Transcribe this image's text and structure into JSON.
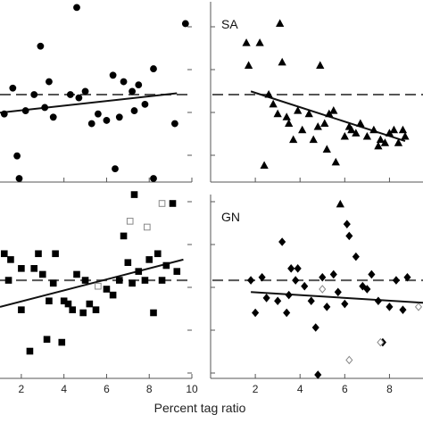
{
  "chart_data": [
    {
      "type": "scatter",
      "label": "",
      "marker": "circle",
      "xlim": [
        1,
        10
      ],
      "ylim": [
        -1.3,
        1.3
      ],
      "x_ticks": [
        2,
        4,
        6,
        8,
        10
      ],
      "show_x_tick_labels": false,
      "points_filled": [
        [
          1.2,
          -0.3
        ],
        [
          1.6,
          0.1
        ],
        [
          1.8,
          -0.95
        ],
        [
          1.9,
          -1.3
        ],
        [
          2.2,
          -0.25
        ],
        [
          2.6,
          0.0
        ],
        [
          2.9,
          0.75
        ],
        [
          3.1,
          -0.2
        ],
        [
          3.3,
          0.2
        ],
        [
          3.5,
          -0.35
        ],
        [
          4.3,
          0.0
        ],
        [
          4.6,
          1.35
        ],
        [
          4.7,
          -0.05
        ],
        [
          5.0,
          0.05
        ],
        [
          5.3,
          -0.45
        ],
        [
          5.6,
          -0.3
        ],
        [
          6.0,
          -0.4
        ],
        [
          6.3,
          0.3
        ],
        [
          6.4,
          -1.15
        ],
        [
          6.6,
          -0.35
        ],
        [
          6.8,
          0.2
        ],
        [
          7.2,
          0.05
        ],
        [
          7.3,
          -0.25
        ],
        [
          7.5,
          0.15
        ],
        [
          7.8,
          -0.15
        ],
        [
          8.2,
          -1.3
        ],
        [
          8.2,
          0.4
        ],
        [
          9.2,
          -0.45
        ],
        [
          9.7,
          1.1
        ]
      ],
      "points_open": [],
      "fit_line": {
        "x": [
          1,
          9.3
        ],
        "y": [
          -0.28,
          0.02
        ]
      }
    },
    {
      "type": "scatter",
      "label": "SA",
      "marker": "triangle",
      "xlim": [
        0,
        9.5
      ],
      "ylim": [
        -1.3,
        1.3
      ],
      "x_ticks": [
        2,
        4,
        6,
        8
      ],
      "show_x_tick_labels": false,
      "points_filled": [
        [
          1.6,
          0.8
        ],
        [
          1.7,
          0.45
        ],
        [
          2.2,
          0.8
        ],
        [
          2.4,
          -1.1
        ],
        [
          2.6,
          0.0
        ],
        [
          2.8,
          -0.15
        ],
        [
          3.0,
          -0.3
        ],
        [
          3.1,
          1.1
        ],
        [
          3.2,
          0.5
        ],
        [
          3.4,
          -0.35
        ],
        [
          3.5,
          -0.45
        ],
        [
          3.7,
          -0.7
        ],
        [
          3.9,
          -0.25
        ],
        [
          4.1,
          -0.55
        ],
        [
          4.4,
          -0.3
        ],
        [
          4.6,
          -0.7
        ],
        [
          4.8,
          -0.5
        ],
        [
          4.9,
          0.45
        ],
        [
          5.1,
          -0.45
        ],
        [
          5.2,
          -0.85
        ],
        [
          5.3,
          -0.3
        ],
        [
          5.5,
          -0.25
        ],
        [
          5.6,
          -1.05
        ],
        [
          5.8,
          -1.7
        ],
        [
          6.0,
          -0.65
        ],
        [
          6.2,
          -0.5
        ],
        [
          6.3,
          -0.55
        ],
        [
          6.5,
          -0.6
        ],
        [
          6.7,
          -0.45
        ],
        [
          7.0,
          -0.65
        ],
        [
          7.3,
          -0.55
        ],
        [
          7.5,
          -0.8
        ],
        [
          7.6,
          -0.7
        ],
        [
          7.8,
          -0.75
        ],
        [
          8.0,
          -0.6
        ],
        [
          8.2,
          -0.55
        ],
        [
          8.4,
          -0.75
        ],
        [
          8.6,
          -0.55
        ],
        [
          8.7,
          -0.65
        ]
      ],
      "points_open": [],
      "fit_line": {
        "x": [
          1.8,
          8.7
        ],
        "y": [
          0.05,
          -0.72
        ]
      }
    },
    {
      "type": "scatter",
      "label": "",
      "marker": "square",
      "xlim": [
        1,
        10
      ],
      "ylim": [
        -1.6,
        1.3
      ],
      "x_ticks": [
        2,
        4,
        6,
        8,
        10
      ],
      "show_x_tick_labels": true,
      "points_filled": [
        [
          1.2,
          0.45
        ],
        [
          1.4,
          0.0
        ],
        [
          1.5,
          0.35
        ],
        [
          2.0,
          -0.5
        ],
        [
          2.0,
          0.2
        ],
        [
          2.4,
          -1.2
        ],
        [
          2.6,
          0.2
        ],
        [
          2.8,
          0.45
        ],
        [
          3.0,
          0.1
        ],
        [
          3.2,
          -1.0
        ],
        [
          3.3,
          -0.35
        ],
        [
          3.5,
          -0.05
        ],
        [
          3.6,
          0.45
        ],
        [
          3.9,
          -1.05
        ],
        [
          4.0,
          -0.35
        ],
        [
          4.2,
          -0.4
        ],
        [
          4.4,
          -0.5
        ],
        [
          4.6,
          0.1
        ],
        [
          4.9,
          -0.55
        ],
        [
          5.0,
          0.0
        ],
        [
          5.2,
          -0.4
        ],
        [
          5.5,
          -0.5
        ],
        [
          6.0,
          -0.15
        ],
        [
          6.3,
          -0.25
        ],
        [
          6.6,
          0.0
        ],
        [
          6.8,
          0.75
        ],
        [
          7.0,
          0.3
        ],
        [
          7.2,
          -0.05
        ],
        [
          7.3,
          1.45
        ],
        [
          7.5,
          0.15
        ],
        [
          7.8,
          0.0
        ],
        [
          8.0,
          0.35
        ],
        [
          8.2,
          -0.55
        ],
        [
          8.4,
          0.45
        ],
        [
          8.6,
          0.0
        ],
        [
          8.8,
          0.25
        ],
        [
          9.1,
          1.3
        ],
        [
          9.3,
          0.15
        ]
      ],
      "points_open": [
        [
          7.1,
          1.0
        ],
        [
          5.6,
          -0.1
        ],
        [
          8.6,
          1.3
        ],
        [
          7.9,
          0.9
        ]
      ],
      "fit_line": {
        "x": [
          1,
          9.6
        ],
        "y": [
          -0.45,
          0.35
        ]
      }
    },
    {
      "type": "scatter",
      "label": "GN",
      "marker": "diamond",
      "xlim": [
        0,
        9.5
      ],
      "ylim": [
        -1.6,
        1.3
      ],
      "x_ticks": [
        2,
        4,
        6,
        8
      ],
      "show_x_tick_labels": true,
      "points_filled": [
        [
          1.8,
          0.0
        ],
        [
          2.0,
          -0.55
        ],
        [
          2.3,
          0.05
        ],
        [
          2.5,
          -0.3
        ],
        [
          3.0,
          -0.35
        ],
        [
          3.2,
          0.65
        ],
        [
          3.4,
          -0.55
        ],
        [
          3.5,
          -0.25
        ],
        [
          3.6,
          0.2
        ],
        [
          3.8,
          0.0
        ],
        [
          3.9,
          0.2
        ],
        [
          4.2,
          -0.1
        ],
        [
          4.5,
          -0.35
        ],
        [
          4.7,
          -0.8
        ],
        [
          4.8,
          -1.6
        ],
        [
          5.0,
          0.05
        ],
        [
          5.2,
          -0.45
        ],
        [
          5.5,
          0.1
        ],
        [
          5.7,
          -0.2
        ],
        [
          6.0,
          -0.4
        ],
        [
          6.1,
          0.95
        ],
        [
          6.2,
          0.75
        ],
        [
          6.5,
          0.4
        ],
        [
          6.8,
          -0.1
        ],
        [
          7.0,
          -0.15
        ],
        [
          7.2,
          0.1
        ],
        [
          7.5,
          -0.35
        ],
        [
          7.7,
          -1.05
        ],
        [
          8.0,
          -0.45
        ],
        [
          8.3,
          0.0
        ],
        [
          8.6,
          -0.5
        ],
        [
          8.8,
          0.05
        ]
      ],
      "points_open": [
        [
          5.0,
          -0.15
        ],
        [
          6.2,
          -1.35
        ],
        [
          7.6,
          -1.05
        ],
        [
          9.3,
          -0.45
        ]
      ],
      "fit_line": {
        "x": [
          1.8,
          9.5
        ],
        "y": [
          -0.2,
          -0.38
        ]
      }
    }
  ],
  "xlabel": "Percent tag ratio"
}
